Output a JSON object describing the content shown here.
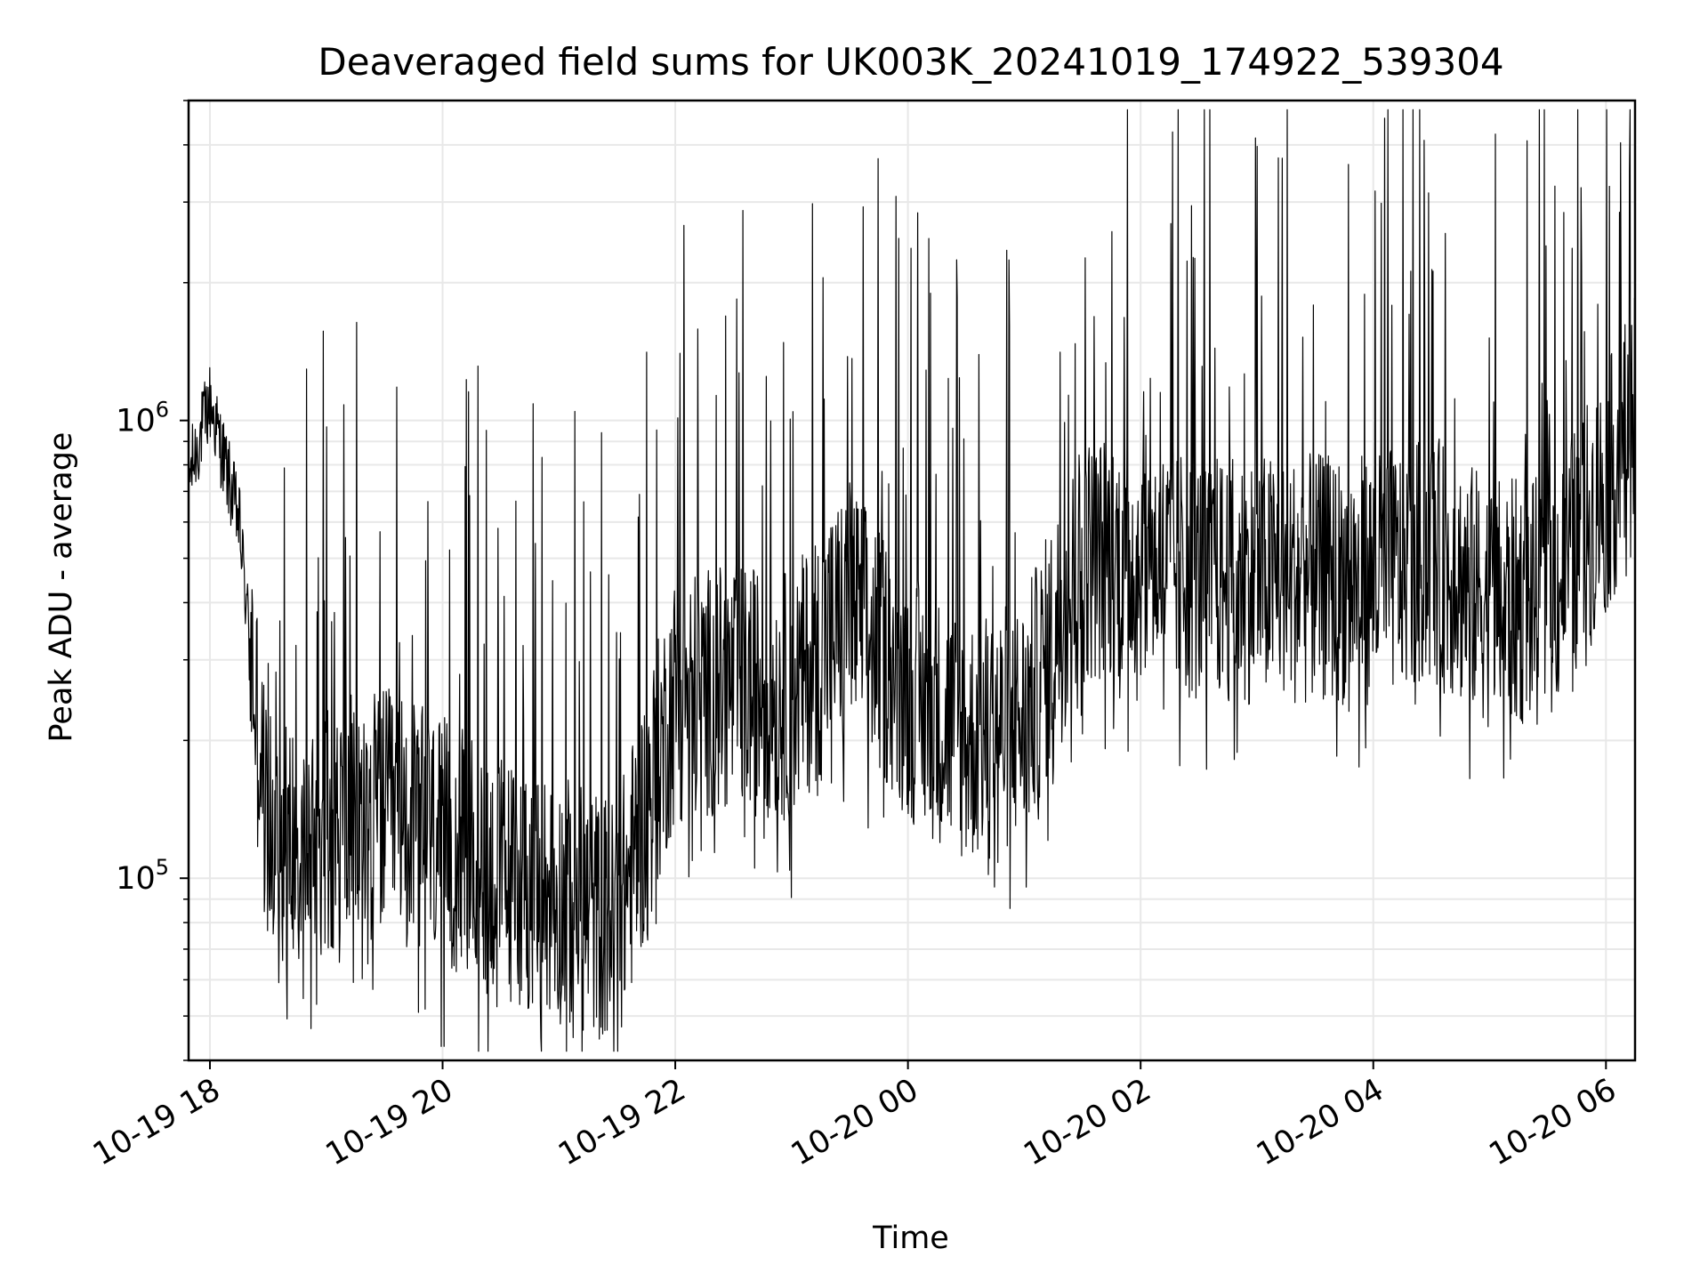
{
  "chart_data": {
    "type": "line",
    "title": "Deaveraged field sums for UK003K_20241019_174922_539304",
    "xlabel": "Time",
    "ylabel": "Peak ADU - average",
    "yscale": "log",
    "ylim": [
      40000,
      5000000
    ],
    "xlim": [
      "2024-10-19 17:49",
      "2024-10-20 06:15"
    ],
    "grid": true,
    "line_color": "#000000",
    "grid_color": "#e8e8e8",
    "x_ticks": [
      {
        "t": "2024-10-19 18:00",
        "label": "10-19 18"
      },
      {
        "t": "2024-10-19 20:00",
        "label": "10-19 20"
      },
      {
        "t": "2024-10-19 22:00",
        "label": "10-19 22"
      },
      {
        "t": "2024-10-20 00:00",
        "label": "10-20 00"
      },
      {
        "t": "2024-10-20 02:00",
        "label": "10-20 02"
      },
      {
        "t": "2024-10-20 04:00",
        "label": "10-20 04"
      },
      {
        "t": "2024-10-20 06:00",
        "label": "10-20 06"
      }
    ],
    "y_ticks": [
      {
        "value": 100000,
        "base": "10",
        "exp": "5"
      },
      {
        "value": 1000000,
        "base": "10",
        "exp": "6"
      }
    ],
    "series": [
      {
        "x": [
          "2024-10-19 17:49",
          "2024-10-19 18:00",
          "2024-10-19 18:15",
          "2024-10-19 18:30",
          "2024-10-19 18:45",
          "2024-10-19 19:00",
          "2024-10-19 19:30",
          "2024-10-19 20:00",
          "2024-10-19 20:30",
          "2024-10-19 21:00",
          "2024-10-19 21:30",
          "2024-10-19 22:00",
          "2024-10-19 22:30",
          "2024-10-19 23:00",
          "2024-10-19 23:30",
          "2024-10-20 00:00",
          "2024-10-20 00:30",
          "2024-10-20 01:00",
          "2024-10-20 01:30",
          "2024-10-20 02:00",
          "2024-10-20 02:30",
          "2024-10-20 03:00",
          "2024-10-20 03:30",
          "2024-10-20 04:00",
          "2024-10-20 04:30",
          "2024-10-20 05:00",
          "2024-10-20 05:30",
          "2024-10-20 06:00",
          "2024-10-20 06:15"
        ],
        "y": [
          750000,
          1100000,
          600000,
          120000,
          120000,
          130000,
          140000,
          120000,
          100000,
          90000,
          80000,
          250000,
          260000,
          250000,
          400000,
          250000,
          200000,
          220000,
          500000,
          500000,
          450000,
          450000,
          450000,
          450000,
          500000,
          400000,
          400000,
          700000,
          1000000
        ]
      }
    ]
  }
}
